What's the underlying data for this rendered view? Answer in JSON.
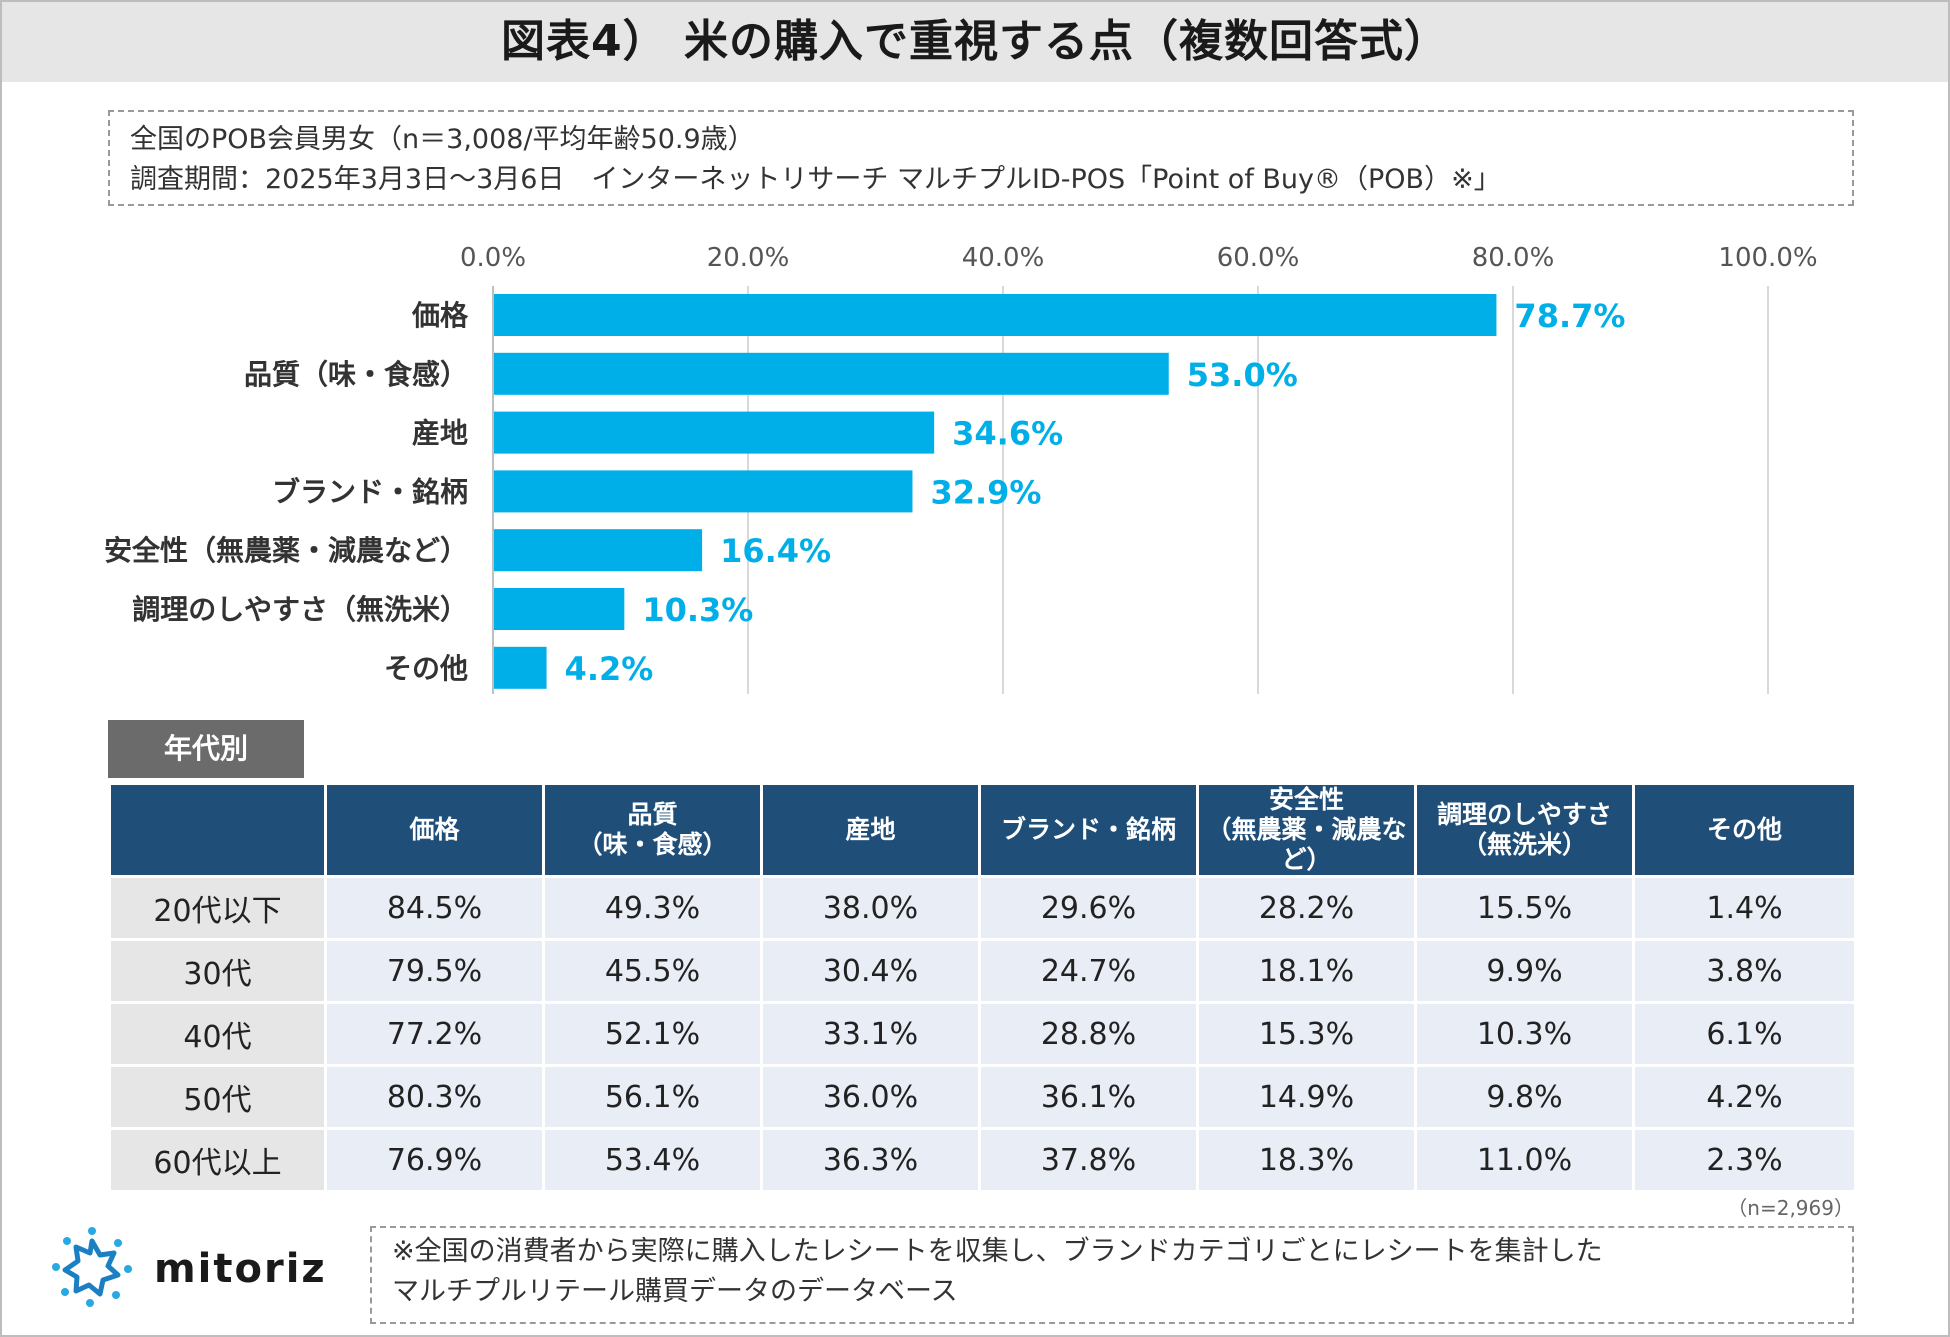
{
  "title": "図表4） 米の購入で重視する点（複数回答式）",
  "survey": {
    "line1": "全国のPOB会員男女（n＝3,008/平均年齢50.9歳）",
    "line2": "調査期間：2025年3月3日～3月6日　インターネットリサーチ マルチプルID-POS「Point of Buy®（POB）※」"
  },
  "colors": {
    "bar": "#00aee8",
    "header": "#1f4e79",
    "grid": "#d9d9d9"
  },
  "chart_data": {
    "type": "bar",
    "orientation": "horizontal",
    "categories": [
      "価格",
      "品質（味・食感）",
      "産地",
      "ブランド・銘柄",
      "安全性（無農薬・減農など）",
      "調理のしやすさ（無洗米）",
      "その他"
    ],
    "values": [
      78.7,
      53.0,
      34.6,
      32.9,
      16.4,
      10.3,
      4.2
    ],
    "value_labels": [
      "78.7%",
      "53.0%",
      "34.6%",
      "32.9%",
      "16.4%",
      "10.3%",
      "4.2%"
    ],
    "xlim": [
      0,
      100
    ],
    "ticks": [
      0,
      20,
      40,
      60,
      80,
      100
    ],
    "tick_labels": [
      "0.0%",
      "20.0%",
      "40.0%",
      "60.0%",
      "80.0%",
      "100.0%"
    ],
    "grid": true
  },
  "age_section": {
    "label": "年代別",
    "columns": [
      [
        "価格"
      ],
      [
        "品質",
        "（味・食感）"
      ],
      [
        "産地"
      ],
      [
        "ブランド・銘柄"
      ],
      [
        "安全性",
        "（無農薬・減農など）"
      ],
      [
        "調理のしやすさ",
        "（無洗米）"
      ],
      [
        "その他"
      ]
    ],
    "rows": [
      {
        "age": "20代以下",
        "values": [
          "84.5%",
          "49.3%",
          "38.0%",
          "29.6%",
          "28.2%",
          "15.5%",
          "1.4%"
        ]
      },
      {
        "age": "30代",
        "values": [
          "79.5%",
          "45.5%",
          "30.4%",
          "24.7%",
          "18.1%",
          "9.9%",
          "3.8%"
        ]
      },
      {
        "age": "40代",
        "values": [
          "77.2%",
          "52.1%",
          "33.1%",
          "28.8%",
          "15.3%",
          "10.3%",
          "6.1%"
        ]
      },
      {
        "age": "50代",
        "values": [
          "80.3%",
          "56.1%",
          "36.0%",
          "36.1%",
          "14.9%",
          "9.8%",
          "4.2%"
        ]
      },
      {
        "age": "60代以上",
        "values": [
          "76.9%",
          "53.4%",
          "36.3%",
          "37.8%",
          "18.3%",
          "11.0%",
          "2.3%"
        ]
      }
    ],
    "n_note": "（n=2,969）"
  },
  "logo": {
    "text": "mitoriz",
    "icon": "sun-gear-icon"
  },
  "footnote": {
    "line1": "※全国の消費者から実際に購入したレシートを収集し、ブランドカテゴリごとにレシートを集計した",
    "line2": "マルチプルリテール購買データのデータベース"
  }
}
